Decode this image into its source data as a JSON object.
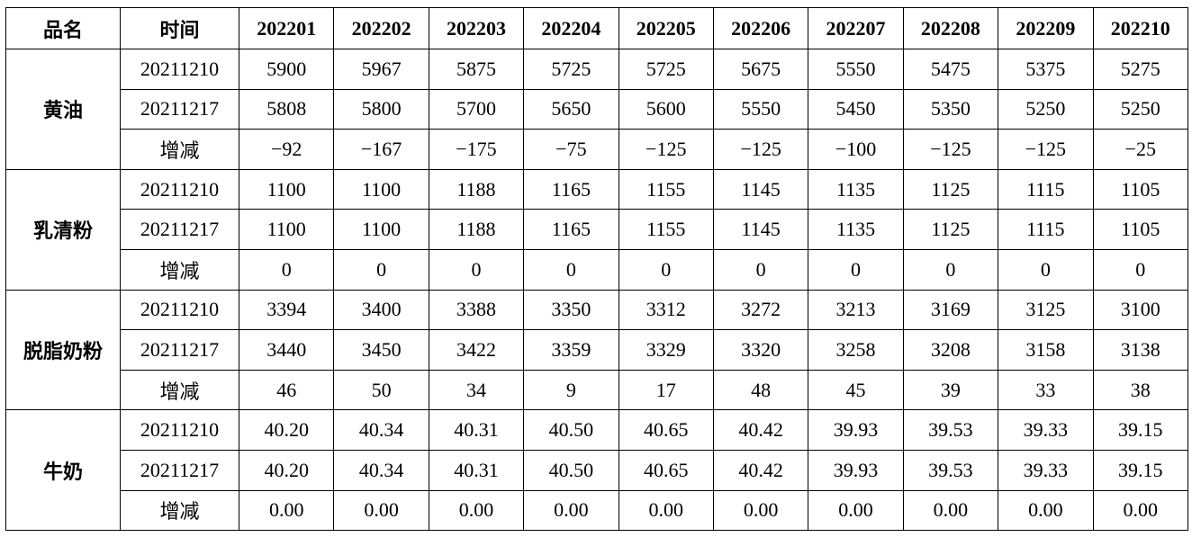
{
  "table": {
    "header": [
      "品名",
      "时间",
      "202201",
      "202202",
      "202203",
      "202204",
      "202205",
      "202206",
      "202207",
      "202208",
      "202209",
      "202210"
    ],
    "groups": [
      {
        "name": "黄油",
        "rows": [
          [
            "20211210",
            "5900",
            "5967",
            "5875",
            "5725",
            "5725",
            "5675",
            "5550",
            "5475",
            "5375",
            "5275"
          ],
          [
            "20211217",
            "5808",
            "5800",
            "5700",
            "5650",
            "5600",
            "5550",
            "5450",
            "5350",
            "5250",
            "5250"
          ],
          [
            "增减",
            "−92",
            "−167",
            "−175",
            "−75",
            "−125",
            "−125",
            "−100",
            "−125",
            "−125",
            "−25"
          ]
        ]
      },
      {
        "name": "乳清粉",
        "rows": [
          [
            "20211210",
            "1100",
            "1100",
            "1188",
            "1165",
            "1155",
            "1145",
            "1135",
            "1125",
            "1115",
            "1105"
          ],
          [
            "20211217",
            "1100",
            "1100",
            "1188",
            "1165",
            "1155",
            "1145",
            "1135",
            "1125",
            "1115",
            "1105"
          ],
          [
            "增减",
            "0",
            "0",
            "0",
            "0",
            "0",
            "0",
            "0",
            "0",
            "0",
            "0"
          ]
        ]
      },
      {
        "name": "脱脂奶粉",
        "rows": [
          [
            "20211210",
            "3394",
            "3400",
            "3388",
            "3350",
            "3312",
            "3272",
            "3213",
            "3169",
            "3125",
            "3100"
          ],
          [
            "20211217",
            "3440",
            "3450",
            "3422",
            "3359",
            "3329",
            "3320",
            "3258",
            "3208",
            "3158",
            "3138"
          ],
          [
            "增减",
            "46",
            "50",
            "34",
            "9",
            "17",
            "48",
            "45",
            "39",
            "33",
            "38"
          ]
        ]
      },
      {
        "name": "牛奶",
        "rows": [
          [
            "20211210",
            "40.20",
            "40.34",
            "40.31",
            "40.50",
            "40.65",
            "40.42",
            "39.93",
            "39.53",
            "39.33",
            "39.15"
          ],
          [
            "20211217",
            "40.20",
            "40.34",
            "40.31",
            "40.50",
            "40.65",
            "40.42",
            "39.93",
            "39.53",
            "39.33",
            "39.15"
          ],
          [
            "增减",
            "0.00",
            "0.00",
            "0.00",
            "0.00",
            "0.00",
            "0.00",
            "0.00",
            "0.00",
            "0.00",
            "0.00"
          ]
        ]
      }
    ]
  }
}
